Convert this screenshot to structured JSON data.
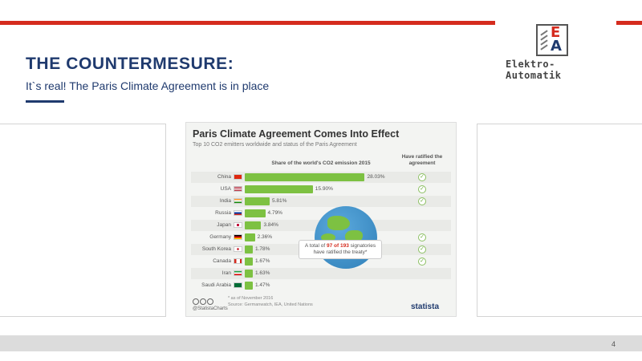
{
  "slide": {
    "title": "THE COUNTERMESURE:",
    "subtitle": "It`s real! The Paris Climate Agreement is in place",
    "page_number": "4",
    "colors": {
      "accent_red": "#d52b1e",
      "navy": "#1f3a6e",
      "bar_green": "#7dc142"
    }
  },
  "logo": {
    "mark_e": "E",
    "mark_a": "A",
    "text": "Elektro-Automatik"
  },
  "infographic": {
    "title": "Paris Climate Agreement Comes Into Effect",
    "subtitle": "Top 10 CO2 emitters worldwide and status of the Paris Agreement",
    "column_head": "Share of the world's CO2 emission 2015",
    "ratified_head": "Have ratified the agreement",
    "callout_before": "A total of ",
    "callout_highlight": "97 of 193",
    "callout_after": " signatories have ratified the treaty*",
    "footnote": "* as of November 2016",
    "source": "Source: Germanwatch, IEA, United Nations",
    "footer_handle": "@StatistaCharts",
    "brand": "statista"
  },
  "chart_data": {
    "type": "bar",
    "title": "Paris Climate Agreement Comes Into Effect",
    "categories": [
      "China",
      "USA",
      "India",
      "Russia",
      "Japan",
      "Germany",
      "South Korea",
      "Canada",
      "Iran",
      "Saudi Arabia"
    ],
    "values": [
      28.03,
      15.9,
      5.81,
      4.79,
      3.84,
      2.36,
      1.78,
      1.67,
      1.63,
      1.47
    ],
    "labels": [
      "28.03%",
      "15.90%",
      "5.81%",
      "4.79%",
      "3.84%",
      "2.36%",
      "1.78%",
      "1.67%",
      "1.63%",
      "1.47%"
    ],
    "ratified": [
      true,
      true,
      true,
      false,
      false,
      true,
      true,
      true,
      false,
      false
    ],
    "xlim": [
      0,
      30
    ]
  }
}
